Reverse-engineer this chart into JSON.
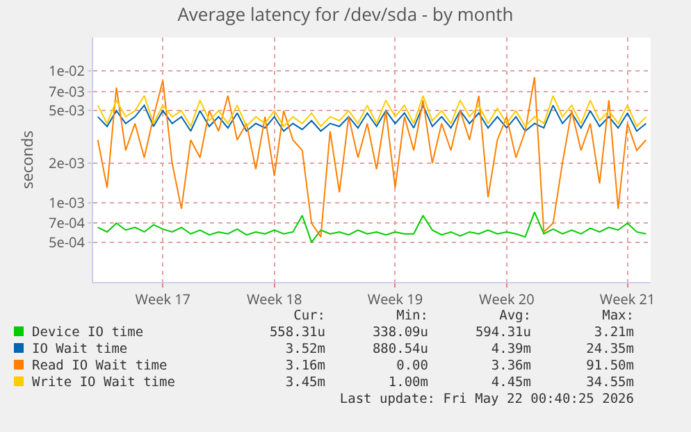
{
  "chart_data": {
    "type": "line",
    "title": "Average latency for /dev/sda - by month",
    "ylabel": "seconds",
    "log": "y",
    "grid": true,
    "legend": "bottom",
    "line_style": "solid",
    "categories": [
      null,
      null,
      null,
      null,
      null,
      null,
      null,
      "Week 17",
      null,
      null,
      null,
      null,
      null,
      null,
      null,
      null,
      null,
      null,
      null,
      "Week 18",
      null,
      null,
      null,
      null,
      null,
      null,
      null,
      null,
      null,
      null,
      null,
      null,
      "Week 19",
      null,
      null,
      null,
      null,
      null,
      null,
      null,
      null,
      null,
      null,
      null,
      "Week 20",
      null,
      null,
      null,
      null,
      null,
      null,
      null,
      null,
      null,
      null,
      null,
      null,
      "Week 21",
      null,
      null
    ],
    "ylim": [
      0.00025,
      0.018
    ],
    "yticks": [
      {
        "value": 0.0005,
        "label": "5e-04"
      },
      {
        "value": 0.0007,
        "label": "7e-04"
      },
      {
        "value": 0.001,
        "label": "1e-03"
      },
      {
        "value": 0.002,
        "label": "2e-03"
      },
      {
        "value": 0.005,
        "label": "5e-03"
      },
      {
        "value": 0.007,
        "label": "7e-03"
      },
      {
        "value": 0.01,
        "label": "1e-02"
      }
    ],
    "series": [
      {
        "name": "Device IO time",
        "color": "#00cc00",
        "values": [
          0.00065,
          0.0006,
          0.0007,
          0.00062,
          0.00065,
          0.0006,
          0.00068,
          0.00063,
          0.0006,
          0.00065,
          0.00058,
          0.00062,
          0.00057,
          0.0006,
          0.00058,
          0.00063,
          0.00057,
          0.0006,
          0.00058,
          0.00062,
          0.00058,
          0.0006,
          0.0008,
          0.0005,
          0.00062,
          0.00058,
          0.0006,
          0.00057,
          0.00062,
          0.00058,
          0.0006,
          0.00057,
          0.0006,
          0.00058,
          0.00058,
          0.0008,
          0.00062,
          0.00057,
          0.0006,
          0.00056,
          0.0006,
          0.00058,
          0.00062,
          0.00058,
          0.0006,
          0.00058,
          0.00055,
          0.00085,
          0.00058,
          0.00063,
          0.00058,
          0.00062,
          0.00058,
          0.00064,
          0.0006,
          0.00065,
          0.00062,
          0.0007,
          0.0006,
          0.00058
        ]
      },
      {
        "name": "IO Wait time",
        "color": "#0066b3",
        "values": [
          0.0045,
          0.0038,
          0.005,
          0.004,
          0.0045,
          0.0055,
          0.0038,
          0.005,
          0.004,
          0.0045,
          0.0035,
          0.005,
          0.0038,
          0.0045,
          0.0037,
          0.0048,
          0.0035,
          0.004,
          0.0037,
          0.0045,
          0.0035,
          0.004,
          0.0036,
          0.0042,
          0.0035,
          0.004,
          0.0038,
          0.0045,
          0.0037,
          0.0048,
          0.0038,
          0.005,
          0.004,
          0.0048,
          0.0037,
          0.0055,
          0.0038,
          0.0045,
          0.0037,
          0.005,
          0.004,
          0.0048,
          0.0037,
          0.0045,
          0.0037,
          0.0045,
          0.0035,
          0.004,
          0.0037,
          0.0055,
          0.004,
          0.0048,
          0.0037,
          0.005,
          0.0038,
          0.0045,
          0.0037,
          0.0048,
          0.0035,
          0.004
        ]
      },
      {
        "name": "Read IO Wait time",
        "color": "#ff8000",
        "values": [
          0.003,
          0.0013,
          0.0075,
          0.0025,
          0.004,
          0.0022,
          0.0045,
          0.0085,
          0.002,
          0.0009,
          0.003,
          0.0022,
          0.005,
          0.0035,
          0.0065,
          0.003,
          0.004,
          0.0018,
          0.0045,
          0.0016,
          0.005,
          0.003,
          0.0025,
          0.0007,
          0.00055,
          0.0035,
          0.0012,
          0.0045,
          0.0022,
          0.004,
          0.0018,
          0.005,
          0.0013,
          0.0045,
          0.0025,
          0.006,
          0.002,
          0.004,
          0.0025,
          0.005,
          0.003,
          0.0065,
          0.0011,
          0.003,
          0.0045,
          0.0022,
          0.0035,
          0.009,
          0.0006,
          0.0007,
          0.002,
          0.005,
          0.0025,
          0.004,
          0.0014,
          0.006,
          0.0009,
          0.004,
          0.0025,
          0.003
        ]
      },
      {
        "name": "Write IO Wait time",
        "color": "#ffcc00",
        "values": [
          0.0055,
          0.004,
          0.006,
          0.0045,
          0.005,
          0.0065,
          0.004,
          0.0055,
          0.0045,
          0.005,
          0.0038,
          0.006,
          0.0042,
          0.005,
          0.004,
          0.0055,
          0.0038,
          0.0045,
          0.004,
          0.005,
          0.0038,
          0.0045,
          0.004,
          0.0048,
          0.0038,
          0.0045,
          0.0042,
          0.005,
          0.004,
          0.0055,
          0.004,
          0.006,
          0.0045,
          0.0055,
          0.004,
          0.0065,
          0.0042,
          0.005,
          0.004,
          0.006,
          0.0045,
          0.0055,
          0.004,
          0.0052,
          0.004,
          0.005,
          0.0038,
          0.0045,
          0.004,
          0.0065,
          0.0045,
          0.0055,
          0.004,
          0.006,
          0.0042,
          0.005,
          0.004,
          0.0055,
          0.0038,
          0.0045
        ]
      }
    ],
    "annotations": [
      "Cur:",
      "Min:",
      "Avg:",
      "Max:",
      "558.31u",
      "338.09u",
      "594.31u",
      "3.21m",
      "3.52m",
      "880.54u",
      "4.39m",
      "24.35m",
      "3.16m",
      "0.00",
      "3.36m",
      "91.50m",
      "3.45m",
      "1.00m",
      "4.45m",
      "34.55m",
      "Last update: Fri May 22 00:40:25 2026"
    ]
  }
}
